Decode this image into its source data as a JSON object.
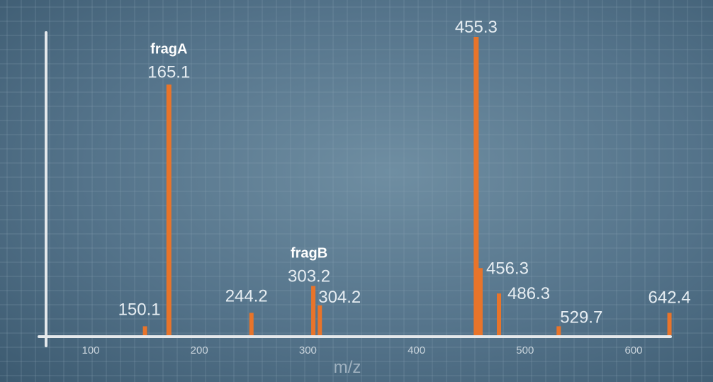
{
  "chart_data": {
    "type": "bar",
    "xlabel": "m/z",
    "ylabel": "",
    "title": "",
    "xlim": [
      60,
      640
    ],
    "ylim": [
      0,
      100
    ],
    "grid": true,
    "x_ticks": [
      "100",
      "200",
      "300",
      "400",
      "500",
      "600"
    ],
    "x_tick_values": [
      100,
      200,
      300,
      400,
      500,
      600
    ],
    "peaks": [
      {
        "label": "150.1",
        "x": 150,
        "value": 3
      },
      {
        "label": "165.1",
        "x": 172,
        "value": 84,
        "annotation": "fragA"
      },
      {
        "label": "244.2",
        "x": 248,
        "value": 7.5
      },
      {
        "label": "303.2",
        "x": 305,
        "value": 16.5,
        "annotation": "fragB"
      },
      {
        "label": "304.2",
        "x": 311,
        "value": 10
      },
      {
        "label": "455.3",
        "x": 455,
        "value": 100
      },
      {
        "label": "456.3",
        "x": 459,
        "value": 22.5
      },
      {
        "label": "486.3",
        "x": 476,
        "value": 14
      },
      {
        "label": "529.7",
        "x": 531,
        "value": 3
      },
      {
        "label": "642.4",
        "x": 633,
        "value": 7.5
      }
    ],
    "colors": {
      "bar": "#e8742a",
      "axis": "#e4e8eb",
      "grid": "#8aa3b4"
    }
  }
}
